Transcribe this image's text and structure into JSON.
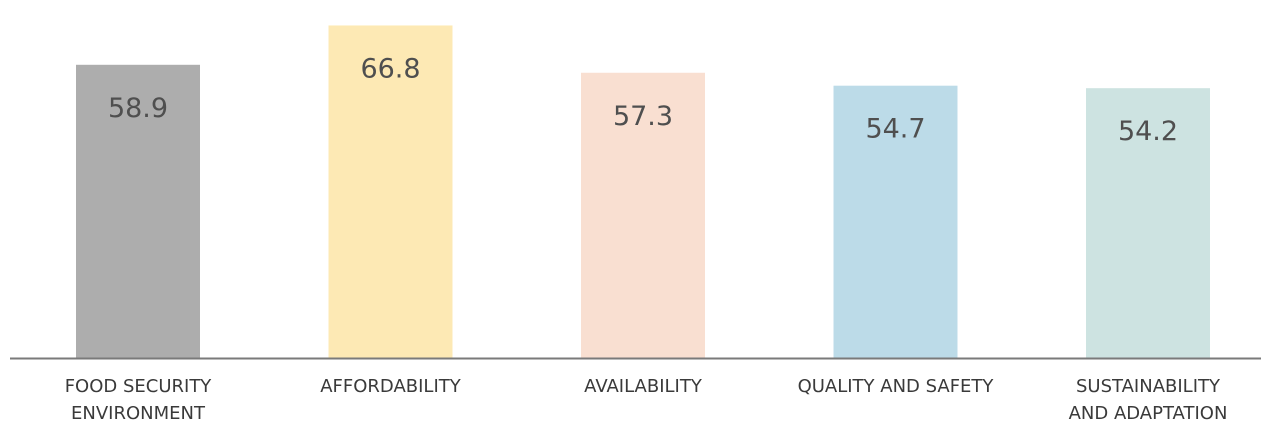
{
  "chart_data": {
    "type": "bar",
    "categories": [
      [
        "FOOD SECURITY",
        "ENVIRONMENT"
      ],
      [
        "AFFORDABILITY"
      ],
      [
        "AVAILABILITY"
      ],
      [
        "QUALITY AND SAFETY"
      ],
      [
        "SUSTAINABILITY",
        "AND ADAPTATION"
      ]
    ],
    "values": [
      58.9,
      66.8,
      57.3,
      54.7,
      54.2
    ],
    "value_labels": [
      "58.9",
      "66.8",
      "57.3",
      "54.7",
      "54.2"
    ],
    "colors": [
      "#adadad",
      "#fde9b4",
      "#f9dfd1",
      "#bcdbe8",
      "#cde3e1"
    ],
    "axis_color": "#7a7a7a",
    "ylim": [
      0,
      68.7
    ],
    "grid": false,
    "legend": "none"
  }
}
